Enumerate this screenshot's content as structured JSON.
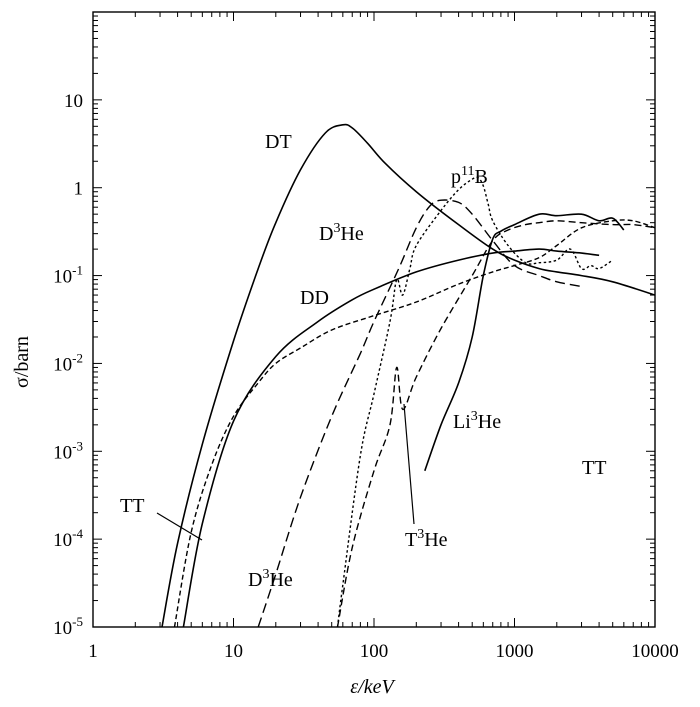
{
  "chart_data": {
    "type": "line",
    "xlabel": "ε/keV",
    "ylabel": "σ/barn",
    "x_scale": "log",
    "y_scale": "log",
    "xlim": [
      1,
      10000
    ],
    "ylim": [
      1e-05,
      100
    ],
    "grid": false,
    "legend": "none",
    "x_ticks": [
      {
        "value": 1,
        "label": "1"
      },
      {
        "value": 10,
        "label": "10"
      },
      {
        "value": 100,
        "label": "100"
      },
      {
        "value": 1000,
        "label": "1000"
      },
      {
        "value": 10000,
        "label": "10000"
      }
    ],
    "y_ticks": [
      {
        "value": 1e-05,
        "base": "10",
        "exp": "-5"
      },
      {
        "value": 0.0001,
        "base": "10",
        "exp": "-4"
      },
      {
        "value": 0.001,
        "base": "10",
        "exp": "-3"
      },
      {
        "value": 0.01,
        "base": "10",
        "exp": "-2"
      },
      {
        "value": 0.1,
        "base": "10",
        "exp": "-1"
      },
      {
        "value": 1,
        "base": "1",
        "exp": ""
      },
      {
        "value": 10,
        "base": "10",
        "exp": ""
      }
    ],
    "series": [
      {
        "name": "DT",
        "style": "solid",
        "x": [
          3.1,
          4,
          6,
          10,
          15,
          20,
          30,
          45,
          60,
          70,
          90,
          120,
          200,
          400,
          700,
          1000,
          1500,
          2000,
          3000,
          5000,
          10000
        ],
        "y": [
          1e-05,
          9e-05,
          0.0012,
          0.018,
          0.12,
          0.4,
          1.6,
          4.2,
          5.2,
          4.8,
          3.2,
          1.9,
          0.9,
          0.38,
          0.2,
          0.15,
          0.12,
          0.11,
          0.1,
          0.085,
          0.06
        ]
      },
      {
        "name": "DD",
        "style": "solid",
        "x": [
          4.4,
          6,
          10,
          20,
          40,
          70,
          100,
          200,
          400,
          700,
          1000,
          1500,
          2000,
          3000,
          4000
        ],
        "y": [
          1e-05,
          0.00015,
          0.0022,
          0.012,
          0.03,
          0.053,
          0.07,
          0.11,
          0.15,
          0.18,
          0.19,
          0.2,
          0.19,
          0.18,
          0.17
        ]
      },
      {
        "name": "TT",
        "style": "short-dash",
        "x": [
          3.8,
          5,
          7,
          10,
          15,
          20,
          30,
          50,
          100,
          200,
          400,
          700,
          1000,
          1500,
          2000,
          3000,
          5000,
          7000,
          10000
        ],
        "y": [
          1e-05,
          0.00012,
          0.0007,
          0.0025,
          0.006,
          0.01,
          0.015,
          0.024,
          0.035,
          0.05,
          0.08,
          0.11,
          0.13,
          0.16,
          0.22,
          0.35,
          0.42,
          0.42,
          0.35
        ]
      },
      {
        "name": "D3He",
        "style": "long-dash",
        "x": [
          15,
          20,
          30,
          50,
          80,
          100,
          150,
          200,
          250,
          300,
          400,
          500,
          700,
          1000,
          1500,
          2000,
          3000
        ],
        "y": [
          1e-05,
          4e-05,
          0.0003,
          0.0025,
          0.013,
          0.03,
          0.12,
          0.35,
          0.62,
          0.72,
          0.68,
          0.5,
          0.25,
          0.13,
          0.1,
          0.085,
          0.075
        ]
      },
      {
        "name": "p11B",
        "style": "dot",
        "x": [
          55,
          60,
          80,
          100,
          130,
          145,
          160,
          180,
          200,
          300,
          400,
          500,
          550,
          600,
          650,
          700,
          900,
          1200,
          1500,
          2000,
          2500,
          3000,
          3500,
          4000,
          5000
        ],
        "y": [
          1e-05,
          3e-05,
          0.0009,
          0.0045,
          0.03,
          0.09,
          0.06,
          0.12,
          0.22,
          0.55,
          0.95,
          1.25,
          1.3,
          1.05,
          0.65,
          0.42,
          0.22,
          0.14,
          0.14,
          0.15,
          0.2,
          0.12,
          0.13,
          0.12,
          0.15
        ]
      },
      {
        "name": "T3He",
        "style": "dash",
        "x": [
          55,
          70,
          100,
          130,
          145,
          160,
          200,
          300,
          500,
          700,
          900,
          1200,
          1500,
          2000,
          3000,
          5000,
          7000,
          10000
        ],
        "y": [
          1e-05,
          8e-05,
          0.0006,
          0.002,
          0.009,
          0.003,
          0.007,
          0.025,
          0.1,
          0.25,
          0.33,
          0.38,
          0.4,
          0.42,
          0.4,
          0.38,
          0.38,
          0.35
        ]
      },
      {
        "name": "Li3He",
        "style": "solid",
        "x": [
          230,
          300,
          400,
          500,
          600,
          700,
          800,
          1000,
          1500,
          2000,
          3000,
          4000,
          5000,
          6000
        ],
        "y": [
          0.0006,
          0.002,
          0.006,
          0.02,
          0.1,
          0.26,
          0.32,
          0.38,
          0.5,
          0.48,
          0.5,
          0.42,
          0.45,
          0.33
        ]
      }
    ],
    "labels": [
      {
        "series": "DT",
        "parts": [
          {
            "t": "DT"
          }
        ]
      },
      {
        "series": "DD",
        "parts": [
          {
            "t": "DD"
          }
        ]
      },
      {
        "series": "D3He-upper",
        "parts": [
          {
            "t": "D"
          },
          {
            "t": "3",
            "sup": true
          },
          {
            "t": "He"
          }
        ]
      },
      {
        "series": "D3He-lower",
        "parts": [
          {
            "t": "D"
          },
          {
            "t": "3",
            "sup": true
          },
          {
            "t": "He"
          }
        ]
      },
      {
        "series": "p11B",
        "parts": [
          {
            "t": "p"
          },
          {
            "t": "11",
            "sup": true
          },
          {
            "t": "B"
          }
        ]
      },
      {
        "series": "Li3He",
        "parts": [
          {
            "t": "Li"
          },
          {
            "t": "3",
            "sup": true
          },
          {
            "t": "He"
          }
        ]
      },
      {
        "series": "T3He",
        "parts": [
          {
            "t": "T"
          },
          {
            "t": "3",
            "sup": true
          },
          {
            "t": "He"
          }
        ]
      },
      {
        "series": "TT-left",
        "parts": [
          {
            "t": "TT"
          }
        ]
      },
      {
        "series": "TT-right",
        "parts": [
          {
            "t": "TT"
          }
        ]
      }
    ]
  }
}
